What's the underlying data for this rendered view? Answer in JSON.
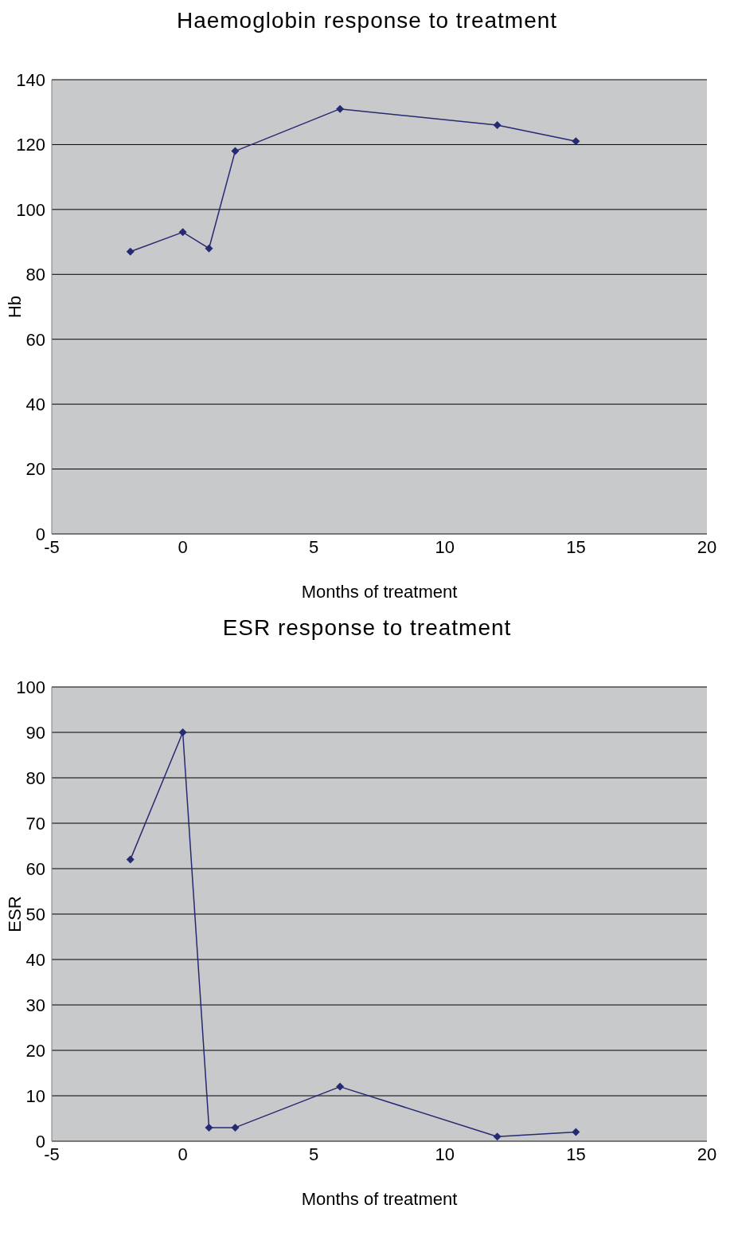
{
  "chart_data": [
    {
      "type": "line",
      "title": "Haemoglobin response to treatment",
      "xlabel": "Months of treatment",
      "ylabel": "Hb",
      "x": [
        -2,
        0,
        1,
        2,
        6,
        12,
        15
      ],
      "series": [
        {
          "color": "#262a73",
          "values": [
            87,
            93,
            88,
            118,
            131,
            126,
            121
          ]
        }
      ],
      "xlim": [
        -5,
        20
      ],
      "xticks": [
        -5,
        0,
        5,
        10,
        15,
        20
      ],
      "ylim": [
        0,
        140
      ],
      "yticks": [
        0,
        20,
        40,
        60,
        80,
        100,
        120,
        140
      ],
      "grid": "y",
      "legend": false,
      "marker": "diamond",
      "line_style": "solid"
    },
    {
      "type": "line",
      "title": "ESR response to treatment",
      "xlabel": "Months of treatment",
      "ylabel": "ESR",
      "x": [
        -2,
        0,
        1,
        2,
        6,
        12,
        15
      ],
      "series": [
        {
          "color": "#262a73",
          "values": [
            62,
            90,
            3,
            3,
            12,
            1,
            2
          ]
        }
      ],
      "xlim": [
        -5,
        20
      ],
      "xticks": [
        -5,
        0,
        5,
        10,
        15,
        20
      ],
      "ylim": [
        0,
        100
      ],
      "yticks": [
        0,
        10,
        20,
        30,
        40,
        50,
        60,
        70,
        80,
        90,
        100
      ],
      "grid": "y",
      "legend": false,
      "marker": "diamond",
      "line_style": "solid"
    }
  ]
}
